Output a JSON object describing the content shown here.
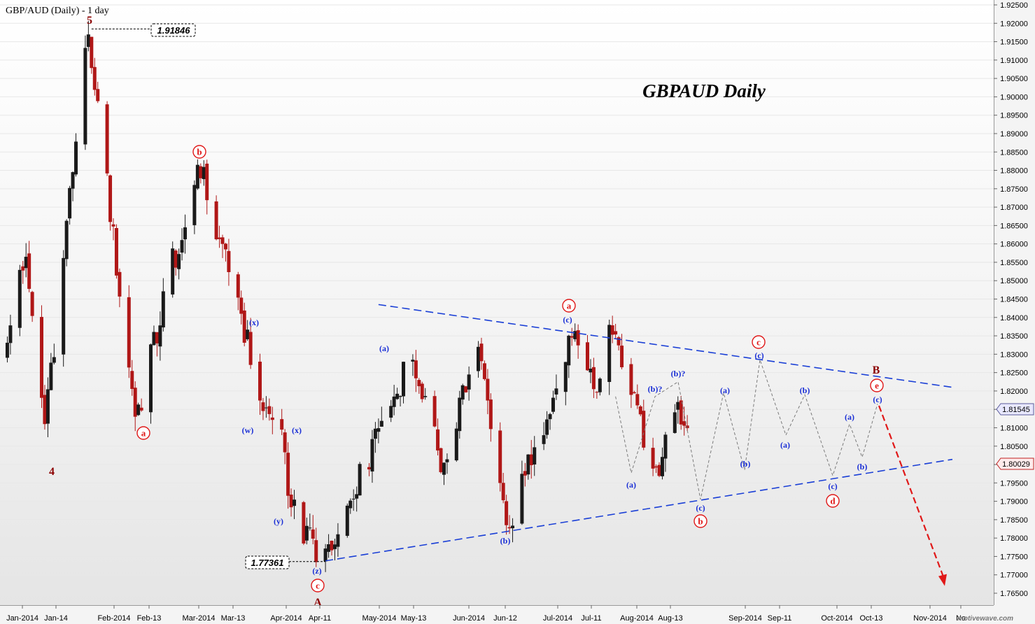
{
  "window": {
    "chart_header": "GBP/AUD (Daily) - 1 day",
    "watermark": "motivewave.com",
    "big_title": "GBPAUD Daily"
  },
  "price_labels": {
    "high": "1.91846",
    "low": "1.77361",
    "current_upper": "1.81545",
    "current_lower": "1.80029"
  },
  "colors": {
    "bull_candle": "#1a1a1a",
    "bear_candle": "#b01717",
    "trendline": "#1a3fd6",
    "wave_red": "#e01818",
    "wave_blue": "#1a2fd6",
    "wave_dark_red": "#8b0000",
    "projection_line": "#7a7a7a",
    "arrow": "#e01818"
  },
  "chart_data": {
    "type": "candlestick",
    "title": "GBPAUD Daily",
    "symbol": "GBP/AUD",
    "timeframe": "1 day",
    "ylim": [
      1.7615,
      1.9275
    ],
    "y_ticks": [
      "1.92500",
      "1.92000",
      "1.91500",
      "1.91000",
      "1.90500",
      "1.90000",
      "1.89500",
      "1.89000",
      "1.88500",
      "1.88000",
      "1.87500",
      "1.87000",
      "1.86500",
      "1.86000",
      "1.85500",
      "1.85000",
      "1.84500",
      "1.84000",
      "1.83500",
      "1.83000",
      "1.82500",
      "1.82000",
      "1.81500",
      "1.81000",
      "1.80500",
      "1.80000",
      "1.79500",
      "1.79000",
      "1.78500",
      "1.78000",
      "1.77500",
      "1.77000",
      "1.76500"
    ],
    "x_ticks": [
      "Jan-2014",
      "Jan-14",
      "Feb-2014",
      "Feb-13",
      "Mar-2014",
      "Mar-13",
      "Apr-2014",
      "Apr-11",
      "May-2014",
      "May-13",
      "Jun-2014",
      "Jun-12",
      "Jul-2014",
      "Jul-11",
      "Aug-2014",
      "Aug-13",
      "Sep-2014",
      "Sep-11",
      "Oct-2014",
      "Oct-13",
      "Nov-2014",
      "No"
    ],
    "swing_points": [
      {
        "date": "2014-01-02",
        "price": 1.829
      },
      {
        "date": "2014-01-09",
        "price": 1.858
      },
      {
        "date": "2014-01-15",
        "price": 1.8095,
        "label": "4"
      },
      {
        "date": "2014-01-29",
        "price": 1.91846,
        "label": "5"
      },
      {
        "date": "2014-02-13",
        "price": 1.8115,
        "label": "a"
      },
      {
        "date": "2014-03-05",
        "price": 1.883,
        "label": "b"
      },
      {
        "date": "2014-03-19",
        "price": 1.8395,
        "label": "(x)"
      },
      {
        "date": "2014-03-27",
        "price": 1.814,
        "label": "(w)"
      },
      {
        "date": "2014-04-01",
        "price": 1.808,
        "label": "(x)"
      },
      {
        "date": "2014-04-03",
        "price": 1.79,
        "label": "(y)"
      },
      {
        "date": "2014-04-14",
        "price": 1.77361,
        "label": "(z) c A"
      },
      {
        "date": "2014-05-13",
        "price": 1.83,
        "label": "(a)"
      },
      {
        "date": "2014-05-23",
        "price": 1.799
      },
      {
        "date": "2014-06-03",
        "price": 1.8335
      },
      {
        "date": "2014-06-12",
        "price": 1.782,
        "label": "(b)"
      },
      {
        "date": "2014-07-04",
        "price": 1.8378,
        "label": "(c) a"
      },
      {
        "date": "2014-07-10",
        "price": 1.819
      },
      {
        "date": "2014-07-16",
        "price": 1.8368
      },
      {
        "date": "2014-07-30",
        "price": 1.7977,
        "label": "(a)"
      },
      {
        "date": "2014-08-06",
        "price": 1.8185,
        "label": "(b)?"
      },
      {
        "date": "2014-08-11",
        "price": 1.8029
      }
    ],
    "projection": [
      {
        "label": "(b)?",
        "price": 1.8225
      },
      {
        "label": "(c) b",
        "price": 1.7905
      },
      {
        "label": "(a)",
        "price": 1.8195
      },
      {
        "label": "(b)",
        "price": 1.7985
      },
      {
        "label": "(c) c",
        "price": 1.8285
      },
      {
        "label": "(a)",
        "price": 1.808
      },
      {
        "label": "(b)",
        "price": 1.819
      },
      {
        "label": "(c) d",
        "price": 1.797
      },
      {
        "label": "(a)",
        "price": 1.811
      },
      {
        "label": "(b)",
        "price": 1.802
      },
      {
        "label": "(c) e B",
        "price": 1.8165
      }
    ],
    "trendlines": [
      {
        "name": "upper",
        "from": {
          "date": "2014-05-01",
          "price": 1.8435
        },
        "to": {
          "date": "2014-11-01",
          "price": 1.821
        }
      },
      {
        "name": "lower",
        "from": {
          "date": "2014-04-14",
          "price": 1.7738
        },
        "to": {
          "date": "2014-11-01",
          "price": 1.8014
        }
      }
    ],
    "target_arrow": {
      "from_price": 1.816,
      "to_price": 1.7685
    }
  }
}
